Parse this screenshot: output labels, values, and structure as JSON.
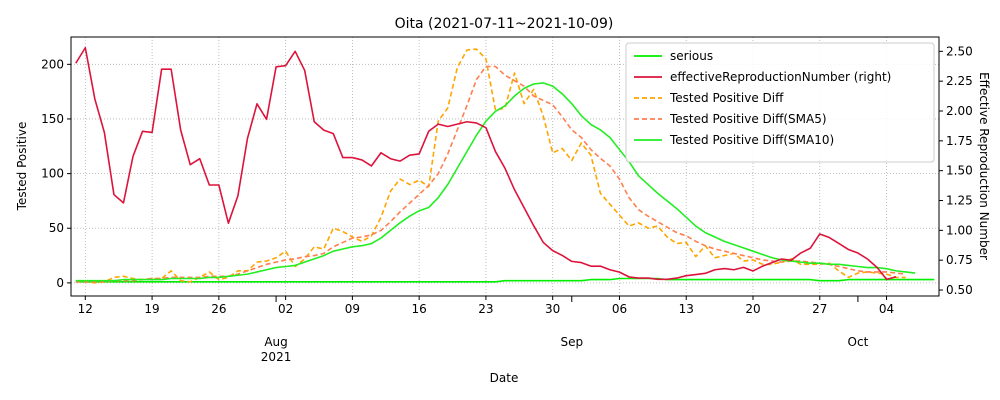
{
  "chart_data": {
    "type": "line",
    "title": "Oita (2021-07-11~2021-10-09)",
    "xlabel": "Date",
    "ylabel": "Tested Positive",
    "y2label": "Effective Reproduction Number",
    "ylim": [
      -12,
      225
    ],
    "y2lim": [
      0.45,
      2.62
    ],
    "yticks": [
      0,
      50,
      100,
      150,
      200
    ],
    "y2ticks": [
      "0.50",
      "0.75",
      "1.00",
      "1.25",
      "1.50",
      "1.75",
      "2.00",
      "2.25",
      "2.50"
    ],
    "y2tickValues": [
      0.5,
      0.75,
      1.0,
      1.25,
      1.5,
      1.75,
      2.0,
      2.25,
      2.5
    ],
    "x_start": "2021-07-11",
    "x_days": 91,
    "x_day_ticks": [
      {
        "day": 1,
        "label": "12"
      },
      {
        "day": 8,
        "label": "19"
      },
      {
        "day": 15,
        "label": "26"
      },
      {
        "day": 22,
        "label": "02"
      },
      {
        "day": 29,
        "label": "09"
      },
      {
        "day": 36,
        "label": "16"
      },
      {
        "day": 43,
        "label": "23"
      },
      {
        "day": 50,
        "label": "30"
      },
      {
        "day": 57,
        "label": "06"
      },
      {
        "day": 64,
        "label": "13"
      },
      {
        "day": 71,
        "label": "20"
      },
      {
        "day": 78,
        "label": "27"
      },
      {
        "day": 85,
        "label": "04"
      }
    ],
    "x_month_ticks": [
      {
        "day": 21,
        "label": "Aug",
        "sub": "2021"
      },
      {
        "day": 52,
        "label": "Sep",
        "sub": ""
      },
      {
        "day": 82,
        "label": "Oct",
        "sub": ""
      }
    ],
    "legend_position": "top-right",
    "series": [
      {
        "name": "serious",
        "axis": "left",
        "color": "#00ee00",
        "dash": "solid",
        "values": [
          1,
          1,
          1,
          1,
          1,
          1,
          1,
          1,
          1,
          1,
          1,
          1,
          1,
          1,
          1,
          1,
          1,
          1,
          1,
          1,
          1,
          1,
          1,
          1,
          1,
          1,
          1,
          1,
          1,
          1,
          1,
          1,
          1,
          1,
          1,
          1,
          1,
          1,
          1,
          1,
          1,
          1,
          1,
          1,
          1,
          2,
          2,
          2,
          2,
          2,
          2,
          2,
          2,
          2,
          3,
          3,
          3,
          4,
          4,
          4,
          4,
          4,
          3,
          3,
          3,
          3,
          3,
          3,
          3,
          3,
          3,
          3,
          3,
          3,
          3,
          3,
          3,
          3,
          2,
          2,
          2,
          3,
          3,
          3,
          3,
          3,
          3,
          3,
          3,
          3,
          3
        ]
      },
      {
        "name": "effectiveReproductionNumber (right)",
        "axis": "right",
        "color": "#dc143c",
        "dash": "solid",
        "values": [
          2.4,
          2.53,
          2.1,
          1.82,
          1.3,
          1.23,
          1.62,
          1.83,
          1.82,
          2.35,
          2.35,
          1.84,
          1.55,
          1.6,
          1.38,
          1.38,
          1.06,
          1.29,
          1.77,
          2.06,
          1.93,
          2.37,
          2.38,
          2.5,
          2.34,
          1.91,
          1.84,
          1.81,
          1.61,
          1.61,
          1.59,
          1.54,
          1.65,
          1.6,
          1.58,
          1.63,
          1.64,
          1.83,
          1.89,
          1.87,
          1.89,
          1.91,
          1.9,
          1.86,
          1.66,
          1.52,
          1.34,
          1.19,
          1.04,
          0.9,
          0.83,
          0.79,
          0.74,
          0.73,
          0.7,
          0.7,
          0.67,
          0.65,
          0.61,
          0.6,
          0.6,
          0.59,
          0.59,
          0.6,
          0.62,
          0.63,
          0.64,
          0.67,
          0.68,
          0.67,
          0.69,
          0.66,
          0.7,
          0.73,
          0.76,
          0.75,
          0.81,
          0.85,
          0.97,
          0.94,
          0.89,
          0.84,
          0.81,
          0.76,
          0.69,
          0.59,
          0.61
        ]
      },
      {
        "name": "Tested Positive Diff",
        "axis": "left",
        "color": "#ffa500",
        "dash": "dashed",
        "values": [
          1,
          1,
          0,
          1,
          5,
          6,
          4,
          3,
          4,
          4,
          11,
          2,
          1,
          5,
          10,
          3,
          5,
          11,
          11,
          19,
          20,
          23,
          29,
          15,
          22,
          33,
          31,
          50,
          47,
          42,
          38,
          43,
          60,
          84,
          95,
          90,
          94,
          88,
          148,
          160,
          197,
          213,
          214,
          205,
          158,
          160,
          192,
          164,
          177,
          153,
          119,
          123,
          112,
          128,
          117,
          82,
          72,
          62,
          52,
          55,
          50,
          52,
          42,
          36,
          37,
          24,
          34,
          23,
          25,
          27,
          20,
          21,
          17,
          17,
          19,
          22,
          17,
          17,
          17,
          18,
          11,
          5,
          9,
          10,
          9,
          8,
          5,
          5
        ]
      },
      {
        "name": "Tested Positive Diff(SMA5)",
        "axis": "left",
        "color": "#ff7f50",
        "dash": "dashed",
        "values": [
          1,
          1,
          1,
          1,
          2,
          2,
          2,
          3,
          4,
          4,
          5,
          5,
          5,
          5,
          6,
          6,
          6,
          8,
          11,
          14,
          17,
          19,
          21,
          22,
          24,
          25,
          27,
          33,
          37,
          41,
          42,
          44,
          48,
          56,
          65,
          73,
          81,
          89,
          100,
          118,
          140,
          162,
          186,
          198,
          198,
          190,
          185,
          180,
          171,
          167,
          163,
          152,
          140,
          133,
          122,
          114,
          107,
          95,
          78,
          67,
          61,
          56,
          51,
          46,
          43,
          38,
          34,
          31,
          29,
          27,
          25,
          23,
          21,
          20,
          19,
          20,
          20,
          19,
          18,
          17,
          15,
          13,
          11,
          10,
          10,
          10,
          9,
          8
        ]
      },
      {
        "name": "Tested Positive Diff(SMA10)",
        "axis": "left",
        "color": "#22ee22",
        "dash": "solid",
        "values": [
          2,
          2,
          2,
          2,
          2,
          3,
          3,
          3,
          3,
          3,
          4,
          4,
          4,
          4,
          5,
          5,
          6,
          7,
          8,
          10,
          12,
          14,
          15,
          16,
          19,
          22,
          25,
          29,
          31,
          33,
          34,
          36,
          41,
          48,
          55,
          61,
          66,
          69,
          78,
          90,
          105,
          120,
          135,
          148,
          157,
          162,
          171,
          178,
          182,
          183,
          180,
          173,
          164,
          153,
          145,
          140,
          133,
          122,
          111,
          98,
          90,
          82,
          75,
          68,
          60,
          52,
          46,
          42,
          38,
          35,
          32,
          29,
          26,
          23,
          21,
          20,
          19,
          18,
          18,
          17,
          17,
          16,
          15,
          14,
          14,
          13,
          11,
          10,
          9
        ]
      }
    ]
  }
}
